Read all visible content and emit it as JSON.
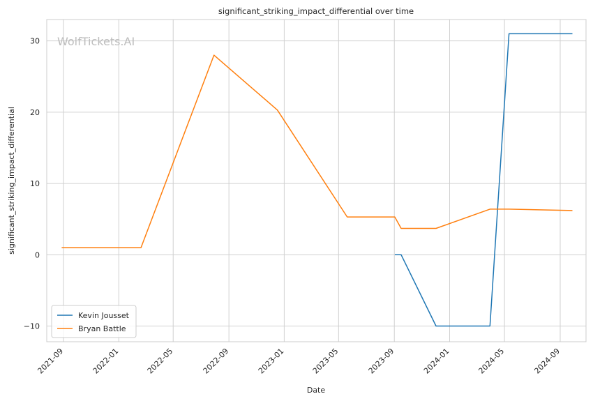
{
  "chart_data": {
    "type": "line",
    "title": "significant_striking_impact_differential over time",
    "xlabel": "Date",
    "ylabel": "significant_striking_impact_differential",
    "watermark": "WolfTickets.AI",
    "x_ticks": [
      "2021-09",
      "2022-01",
      "2022-05",
      "2022-09",
      "2023-01",
      "2023-05",
      "2023-09",
      "2024-01",
      "2024-05",
      "2024-09"
    ],
    "y_ticks": [
      -10,
      0,
      10,
      20,
      30
    ],
    "xlim": [
      "2021-07-26",
      "2024-10-28"
    ],
    "ylim": [
      -12.2,
      33.0
    ],
    "grid": true,
    "legend_position": "lower-left",
    "series": [
      {
        "name": "Kevin Jousset",
        "color": "#1f77b4",
        "points": [
          [
            "2023-09-02",
            0
          ],
          [
            "2023-09-16",
            0
          ],
          [
            "2023-12-02",
            -10
          ],
          [
            "2024-03-30",
            -10
          ],
          [
            "2024-05-11",
            31
          ],
          [
            "2024-09-28",
            31
          ]
        ]
      },
      {
        "name": "Bryan Battle",
        "color": "#ff7f0e",
        "points": [
          [
            "2021-08-28",
            1
          ],
          [
            "2022-02-19",
            1
          ],
          [
            "2022-07-30",
            28
          ],
          [
            "2022-12-17",
            20.3
          ],
          [
            "2023-05-20",
            5.3
          ],
          [
            "2023-09-02",
            5.3
          ],
          [
            "2023-09-16",
            3.7
          ],
          [
            "2023-12-02",
            3.7
          ],
          [
            "2024-03-30",
            6.4
          ],
          [
            "2024-05-11",
            6.4
          ],
          [
            "2024-09-28",
            6.2
          ]
        ]
      }
    ]
  }
}
